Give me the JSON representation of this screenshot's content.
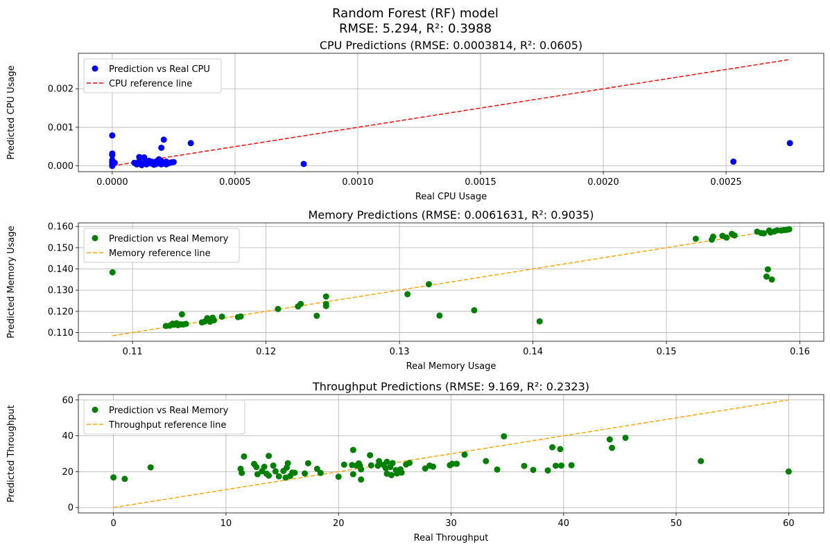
{
  "figure": {
    "title_line1": "Random Forest (RF) model",
    "title_line2": "RMSE: 5.294, R²: 0.3988"
  },
  "chart_data": [
    {
      "type": "scatter",
      "title": "CPU Predictions (RMSE: 0.0003814, R²: 0.0605)",
      "xlabel": "Real CPU Usage",
      "ylabel": "Predicted CPU Usage",
      "xlim": [
        -0.000138,
        0.002898
      ],
      "ylim": [
        -0.00015,
        0.00292
      ],
      "xticks": [
        0,
        0.0005,
        0.001,
        0.0015,
        0.002,
        0.0025
      ],
      "xtick_labels": [
        "0.0000",
        "0.0005",
        "0.0010",
        "0.0015",
        "0.0020",
        "0.0025"
      ],
      "yticks": [
        0,
        0.001,
        0.002
      ],
      "ytick_labels": [
        "0.000",
        "0.001",
        "0.002"
      ],
      "grid": true,
      "legend_position": "top-left",
      "legend": [
        "Prediction vs Real CPU",
        "CPU reference line"
      ],
      "colors": {
        "scatter": "#0000ff",
        "reference": "#ff0000"
      },
      "reference_line": {
        "x": [
          0,
          0.00276
        ],
        "y": [
          0,
          0.00276
        ]
      },
      "points": [
        [
          0,
          0.00079
        ],
        [
          0,
          0.00032
        ],
        [
          0,
          0.00028
        ],
        [
          0,
          0.00015
        ],
        [
          0,
          0.0001
        ],
        [
          0,
          6e-05
        ],
        [
          0,
          3e-05
        ],
        [
          0,
          0.0
        ],
        [
          1e-05,
          8e-05
        ],
        [
          9e-05,
          8e-05
        ],
        [
          0.0001,
          4e-05
        ],
        [
          0.00011,
          0.00023
        ],
        [
          0.00011,
          0.00012
        ],
        [
          0.00012,
          7e-05
        ],
        [
          0.00012,
          2e-05
        ],
        [
          0.00013,
          6e-05
        ],
        [
          0.00013,
          0.00022
        ],
        [
          0.00014,
          0.0001
        ],
        [
          0.00014,
          4e-05
        ],
        [
          0.00015,
          9e-05
        ],
        [
          0.00015,
          0.00013
        ],
        [
          0.00016,
          6e-05
        ],
        [
          0.00016,
          0.00011
        ],
        [
          0.00017,
          3e-05
        ],
        [
          0.00017,
          8e-05
        ],
        [
          0.00018,
          0.00012
        ],
        [
          0.00018,
          5e-05
        ],
        [
          0.00019,
          0.00017
        ],
        [
          0.00019,
          9e-05
        ],
        [
          0.0002,
          0.00047
        ],
        [
          0.0002,
          0.00012
        ],
        [
          0.0002,
          4e-05
        ],
        [
          0.00021,
          0.00068
        ],
        [
          0.00021,
          9e-05
        ],
        [
          0.00022,
          4e-05
        ],
        [
          0.00022,
          0.00011
        ],
        [
          0.00023,
          7e-05
        ],
        [
          0.00024,
          9e-05
        ],
        [
          0.00025,
          0.0001
        ],
        [
          0.00032,
          0.00059
        ],
        [
          0.00078,
          5e-05
        ],
        [
          0.00253,
          0.00011
        ],
        [
          0.00276,
          0.00059
        ]
      ]
    },
    {
      "type": "scatter",
      "title": "Memory Predictions (RMSE: 0.0061631, R²: 0.9035)",
      "xlabel": "Real Memory Usage",
      "ylabel": "Predicted Memory Usage",
      "xlim": [
        0.10594,
        0.16179
      ],
      "ylim": [
        0.1059,
        0.1617
      ],
      "xticks": [
        0.11,
        0.12,
        0.13,
        0.14,
        0.15,
        0.16
      ],
      "xtick_labels": [
        "0.11",
        "0.12",
        "0.13",
        "0.14",
        "0.15",
        "0.16"
      ],
      "yticks": [
        0.11,
        0.12,
        0.13,
        0.14,
        0.15,
        0.16
      ],
      "ytick_labels": [
        "0.110",
        "0.120",
        "0.130",
        "0.140",
        "0.150",
        "0.160"
      ],
      "grid": true,
      "legend_position": "top-left",
      "legend": [
        "Prediction vs Real Memory",
        "Memory reference line"
      ],
      "colors": {
        "scatter": "#008000",
        "reference": "#ffa500"
      },
      "reference_line": {
        "x": [
          0.1085,
          0.1592
        ],
        "y": [
          0.1085,
          0.1592
        ]
      },
      "points": [
        [
          0.1085,
          0.1384
        ],
        [
          0.1125,
          0.1131
        ],
        [
          0.1128,
          0.1133
        ],
        [
          0.113,
          0.1142
        ],
        [
          0.1131,
          0.1137
        ],
        [
          0.1133,
          0.1144
        ],
        [
          0.1134,
          0.1135
        ],
        [
          0.1136,
          0.1139
        ],
        [
          0.1137,
          0.1186
        ],
        [
          0.1138,
          0.1138
        ],
        [
          0.114,
          0.1141
        ],
        [
          0.1152,
          0.1148
        ],
        [
          0.1154,
          0.1152
        ],
        [
          0.1156,
          0.1168
        ],
        [
          0.1158,
          0.1151
        ],
        [
          0.116,
          0.117
        ],
        [
          0.1161,
          0.1158
        ],
        [
          0.1167,
          0.1175
        ],
        [
          0.1179,
          0.1173
        ],
        [
          0.1181,
          0.1176
        ],
        [
          0.1209,
          0.1211
        ],
        [
          0.1224,
          0.1223
        ],
        [
          0.1226,
          0.1235
        ],
        [
          0.1238,
          0.1179
        ],
        [
          0.1245,
          0.127
        ],
        [
          0.1245,
          0.1235
        ],
        [
          0.1245,
          0.1225
        ],
        [
          0.1306,
          0.1281
        ],
        [
          0.1322,
          0.1328
        ],
        [
          0.133,
          0.118
        ],
        [
          0.1356,
          0.1205
        ],
        [
          0.1405,
          0.1153
        ],
        [
          0.1522,
          0.1542
        ],
        [
          0.1534,
          0.1538
        ],
        [
          0.1535,
          0.1552
        ],
        [
          0.1542,
          0.1556
        ],
        [
          0.1545,
          0.1548
        ],
        [
          0.1549,
          0.1565
        ],
        [
          0.1551,
          0.1558
        ],
        [
          0.1568,
          0.1576
        ],
        [
          0.1571,
          0.1569
        ],
        [
          0.1573,
          0.1568
        ],
        [
          0.1575,
          0.1364
        ],
        [
          0.1576,
          0.1398
        ],
        [
          0.1577,
          0.1581
        ],
        [
          0.1578,
          0.1572
        ],
        [
          0.1579,
          0.135
        ],
        [
          0.1581,
          0.1577
        ],
        [
          0.1583,
          0.1582
        ],
        [
          0.1586,
          0.1581
        ],
        [
          0.1588,
          0.1583
        ],
        [
          0.159,
          0.1584
        ],
        [
          0.1592,
          0.1587
        ]
      ]
    },
    {
      "type": "scatter",
      "title": "Throughput Predictions (RMSE: 9.169, R²: 0.2323)",
      "xlabel": "Real Throughput",
      "ylabel": "Predicted Throughput",
      "xlim": [
        -3.12,
        63.12
      ],
      "ylim": [
        -3.0,
        63.0
      ],
      "xticks": [
        0,
        10,
        20,
        30,
        40,
        50,
        60
      ],
      "xtick_labels": [
        "0",
        "10",
        "20",
        "30",
        "40",
        "50",
        "60"
      ],
      "yticks": [
        0,
        20,
        40,
        60
      ],
      "ytick_labels": [
        "0",
        "20",
        "40",
        "60"
      ],
      "grid": true,
      "legend_position": "top-left",
      "legend": [
        "Prediction vs Real Memory",
        "Throughput reference line"
      ],
      "colors": {
        "scatter": "#008000",
        "reference": "#ffa500"
      },
      "reference_line": {
        "x": [
          0,
          60
        ],
        "y": [
          0,
          60
        ]
      },
      "points": [
        [
          0.0,
          16.8
        ],
        [
          1.0,
          16.0
        ],
        [
          3.3,
          22.4
        ],
        [
          11.3,
          21.6
        ],
        [
          11.4,
          19.3
        ],
        [
          11.6,
          28.5
        ],
        [
          12.5,
          24.3
        ],
        [
          12.7,
          22.6
        ],
        [
          12.8,
          18.6
        ],
        [
          13.2,
          20.3
        ],
        [
          13.4,
          22.7
        ],
        [
          13.6,
          18.9
        ],
        [
          13.8,
          17.8
        ],
        [
          13.8,
          28.8
        ],
        [
          14.2,
          23.4
        ],
        [
          14.4,
          20.2
        ],
        [
          14.7,
          17.4
        ],
        [
          15.1,
          20.4
        ],
        [
          15.3,
          16.7
        ],
        [
          15.4,
          22.3
        ],
        [
          15.5,
          24.7
        ],
        [
          15.7,
          17.6
        ],
        [
          15.9,
          19.5
        ],
        [
          16.1,
          19.4
        ],
        [
          17.0,
          19.0
        ],
        [
          17.3,
          24.7
        ],
        [
          18.1,
          21.6
        ],
        [
          18.4,
          19.3
        ],
        [
          20.0,
          17.2
        ],
        [
          20.5,
          23.9
        ],
        [
          21.2,
          23.7
        ],
        [
          21.3,
          32.1
        ],
        [
          21.3,
          18.6
        ],
        [
          21.6,
          23.4
        ],
        [
          21.8,
          24.6
        ],
        [
          21.9,
          23.4
        ],
        [
          22.0,
          21.3
        ],
        [
          22.0,
          15.6
        ],
        [
          22.8,
          29.2
        ],
        [
          22.9,
          23.5
        ],
        [
          23.5,
          23.3
        ],
        [
          23.6,
          25.9
        ],
        [
          24.0,
          23.8
        ],
        [
          24.2,
          21.9
        ],
        [
          24.3,
          18.9
        ],
        [
          24.3,
          25.5
        ],
        [
          24.6,
          22.6
        ],
        [
          24.7,
          18.1
        ],
        [
          24.8,
          24.8
        ],
        [
          25.1,
          20.9
        ],
        [
          25.2,
          19.0
        ],
        [
          25.5,
          21.3
        ],
        [
          25.6,
          19.5
        ],
        [
          26.0,
          24.0
        ],
        [
          26.3,
          24.9
        ],
        [
          27.7,
          21.8
        ],
        [
          28.1,
          23.4
        ],
        [
          28.4,
          22.8
        ],
        [
          29.9,
          23.6
        ],
        [
          30.1,
          24.4
        ],
        [
          30.5,
          24.4
        ],
        [
          31.2,
          29.5
        ],
        [
          33.1,
          25.9
        ],
        [
          34.1,
          21.2
        ],
        [
          34.7,
          39.7
        ],
        [
          36.5,
          23.2
        ],
        [
          37.3,
          21.0
        ],
        [
          38.6,
          20.7
        ],
        [
          39.0,
          33.6
        ],
        [
          39.3,
          23.3
        ],
        [
          39.7,
          32.6
        ],
        [
          39.8,
          23.4
        ],
        [
          40.7,
          23.6
        ],
        [
          44.1,
          38.0
        ],
        [
          44.3,
          33.3
        ],
        [
          45.5,
          38.9
        ],
        [
          52.2,
          25.9
        ],
        [
          60.0,
          20.1
        ]
      ]
    }
  ]
}
